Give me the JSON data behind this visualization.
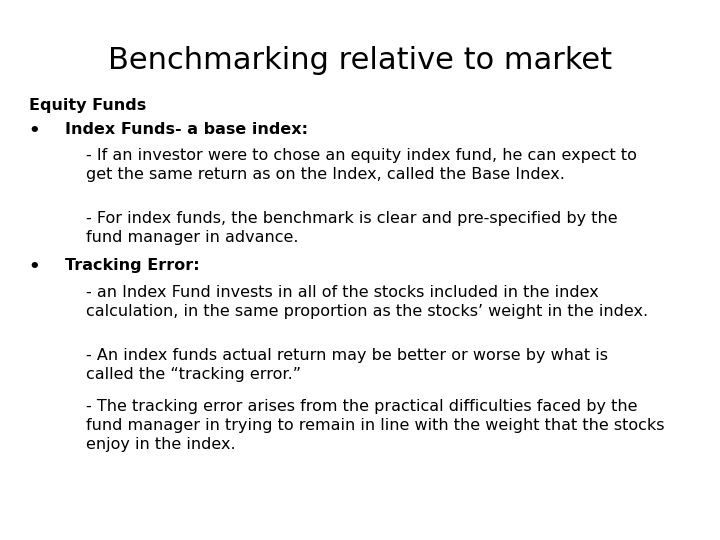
{
  "title": "Benchmarking relative to market",
  "title_fontsize": 22,
  "body_fontsize": 11.5,
  "header_fontsize": 11.5,
  "label_fontsize": 11.5,
  "background_color": "#ffffff",
  "text_color": "#000000",
  "equity_funds_label": "Equity Funds",
  "bullet1_header": "Index Funds- a base index:",
  "bullet1_text1": "- If an investor were to chose an equity index fund, he can expect to\nget the same return as on the Index, called the Base Index.",
  "bullet1_text2": "- For index funds, the benchmark is clear and pre-specified by the\nfund manager in advance.",
  "bullet2_header": "Tracking Error:",
  "bullet2_text1": "- an Index Fund invests in all of the stocks included in the index\ncalculation, in the same proportion as the stocks’ weight in the index.",
  "bullet2_text2": "- An index funds actual return may be better or worse by what is\ncalled the “tracking error.”",
  "bullet2_text3": "- The tracking error arises from the practical difficulties faced by the\nfund manager in trying to remain in line with the weight that the stocks\nenjoy in the index.",
  "font": "DejaVu Sans"
}
